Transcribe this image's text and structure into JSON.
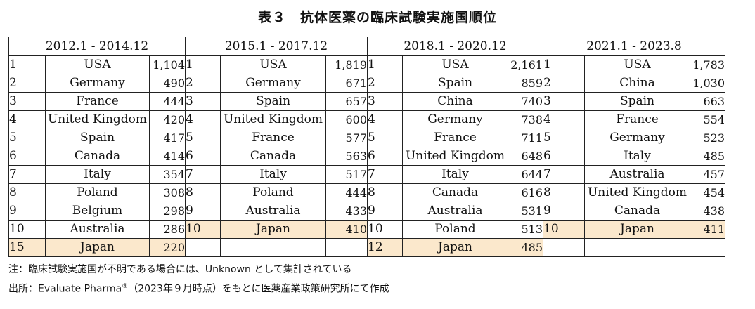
{
  "title": "表３　抗体医薬の臨床試験実施国順位",
  "periods": [
    {
      "label": "2012.1 - 2014.12",
      "rows": [
        {
          "rank": "1",
          "country": "USA",
          "value": "1,104",
          "highlight": false
        },
        {
          "rank": "2",
          "country": "Germany",
          "value": "490",
          "highlight": false
        },
        {
          "rank": "3",
          "country": "France",
          "value": "444",
          "highlight": false
        },
        {
          "rank": "4",
          "country": "United Kingdom",
          "value": "420",
          "highlight": false
        },
        {
          "rank": "5",
          "country": "Spain",
          "value": "417",
          "highlight": false
        },
        {
          "rank": "6",
          "country": "Canada",
          "value": "414",
          "highlight": false
        },
        {
          "rank": "7",
          "country": "Italy",
          "value": "354",
          "highlight": false
        },
        {
          "rank": "8",
          "country": "Poland",
          "value": "308",
          "highlight": false
        },
        {
          "rank": "9",
          "country": "Belgium",
          "value": "298",
          "highlight": false
        },
        {
          "rank": "10",
          "country": "Australia",
          "value": "286",
          "highlight": false
        },
        {
          "rank": "15",
          "country": "Japan",
          "value": "220",
          "highlight": true
        }
      ]
    },
    {
      "label": "2015.1 - 2017.12",
      "rows": [
        {
          "rank": "1",
          "country": "USA",
          "value": "1,819",
          "highlight": false
        },
        {
          "rank": "2",
          "country": "Germany",
          "value": "671",
          "highlight": false
        },
        {
          "rank": "3",
          "country": "Spain",
          "value": "657",
          "highlight": false
        },
        {
          "rank": "4",
          "country": "United Kingdom",
          "value": "600",
          "highlight": false
        },
        {
          "rank": "5",
          "country": "France",
          "value": "577",
          "highlight": false
        },
        {
          "rank": "6",
          "country": "Canada",
          "value": "563",
          "highlight": false
        },
        {
          "rank": "7",
          "country": "Italy",
          "value": "517",
          "highlight": false
        },
        {
          "rank": "8",
          "country": "Poland",
          "value": "444",
          "highlight": false
        },
        {
          "rank": "9",
          "country": "Australia",
          "value": "433",
          "highlight": false
        },
        {
          "rank": "10",
          "country": "Japan",
          "value": "410",
          "highlight": true
        },
        {
          "rank": "",
          "country": "",
          "value": "",
          "highlight": false
        }
      ]
    },
    {
      "label": "2018.1 - 2020.12",
      "rows": [
        {
          "rank": "1",
          "country": "USA",
          "value": "2,161",
          "highlight": false
        },
        {
          "rank": "2",
          "country": "Spain",
          "value": "859",
          "highlight": false
        },
        {
          "rank": "3",
          "country": "China",
          "value": "740",
          "highlight": false
        },
        {
          "rank": "4",
          "country": "Germany",
          "value": "738",
          "highlight": false
        },
        {
          "rank": "5",
          "country": "France",
          "value": "711",
          "highlight": false
        },
        {
          "rank": "6",
          "country": "United Kingdom",
          "value": "648",
          "highlight": false
        },
        {
          "rank": "7",
          "country": "Italy",
          "value": "644",
          "highlight": false
        },
        {
          "rank": "8",
          "country": "Canada",
          "value": "616",
          "highlight": false
        },
        {
          "rank": "9",
          "country": "Australia",
          "value": "531",
          "highlight": false
        },
        {
          "rank": "10",
          "country": "Poland",
          "value": "513",
          "highlight": false
        },
        {
          "rank": "12",
          "country": "Japan",
          "value": "485",
          "highlight": true
        }
      ]
    },
    {
      "label": "2021.1 - 2023.8",
      "rows": [
        {
          "rank": "1",
          "country": "USA",
          "value": "1,783",
          "highlight": false
        },
        {
          "rank": "2",
          "country": "China",
          "value": "1,030",
          "highlight": false
        },
        {
          "rank": "3",
          "country": "Spain",
          "value": "663",
          "highlight": false
        },
        {
          "rank": "4",
          "country": "France",
          "value": "554",
          "highlight": false
        },
        {
          "rank": "5",
          "country": "Germany",
          "value": "523",
          "highlight": false
        },
        {
          "rank": "6",
          "country": "Italy",
          "value": "485",
          "highlight": false
        },
        {
          "rank": "7",
          "country": "Australia",
          "value": "457",
          "highlight": false
        },
        {
          "rank": "8",
          "country": "United Kingdom",
          "value": "454",
          "highlight": false
        },
        {
          "rank": "9",
          "country": "Canada",
          "value": "438",
          "highlight": false
        },
        {
          "rank": "10",
          "country": "Japan",
          "value": "411",
          "highlight": true
        },
        {
          "rank": "",
          "country": "",
          "value": "",
          "highlight": false
        }
      ]
    }
  ],
  "notes": {
    "note": "注：臨床試験実施国が不明である場合には、Unknown として集計されている",
    "source_prefix": "出所：Evaluate Pharma",
    "source_mark": "®",
    "source_suffix": "（2023年９月時点）をもとに医薬産業政策研究所にて作成"
  },
  "colors": {
    "highlight": "#fbe8cc",
    "border": "#222222"
  }
}
